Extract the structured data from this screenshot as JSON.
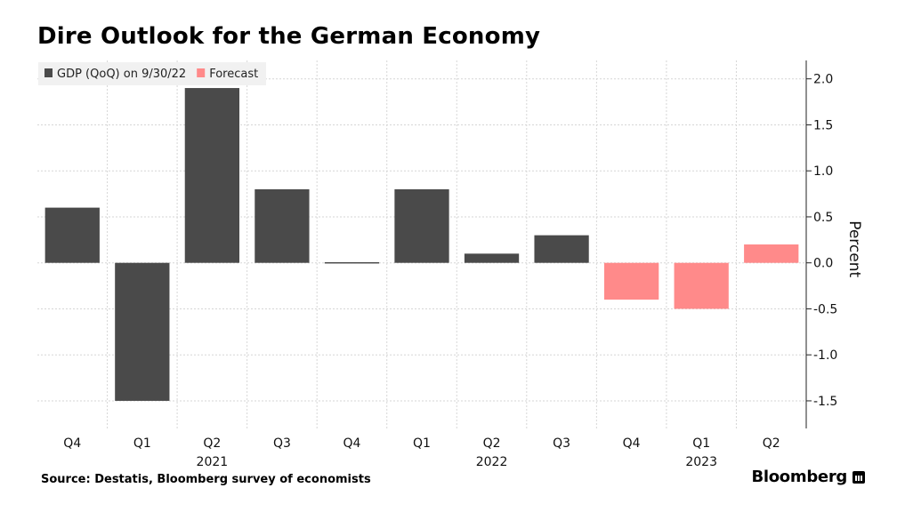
{
  "chart_data": {
    "type": "bar",
    "title": "Dire Outlook for the German Economy",
    "ylabel": "Percent",
    "ylim": [
      -1.8,
      2.2
    ],
    "yticks": [
      2.0,
      1.5,
      1.0,
      0.5,
      0.0,
      -0.5,
      -1.0,
      -1.5
    ],
    "ytick_labels": [
      "2.0",
      "1.5",
      "1.0",
      "0.5",
      "0.0",
      "-0.5",
      "-1.0",
      "-1.5"
    ],
    "categories": [
      "Q4",
      "Q1",
      "Q2",
      "Q3",
      "Q4",
      "Q1",
      "Q2",
      "Q3",
      "Q4",
      "Q1",
      "Q2"
    ],
    "year_labels": [
      {
        "category_index": 2,
        "label": "2021"
      },
      {
        "category_index": 6,
        "label": "2022"
      },
      {
        "category_index": 9,
        "label": "2023"
      }
    ],
    "series": [
      {
        "name": "GDP (QoQ) on 9/30/22",
        "color": "#4a4a4a",
        "values": [
          0.6,
          -1.5,
          1.9,
          0.8,
          0.0,
          0.8,
          0.1,
          0.3,
          null,
          null,
          null
        ]
      },
      {
        "name": "Forecast",
        "color": "#ff8a8a",
        "values": [
          null,
          null,
          null,
          null,
          null,
          null,
          null,
          null,
          -0.4,
          -0.5,
          0.2
        ]
      }
    ],
    "grid": true,
    "legend_position": "top-left",
    "y_axis_side": "right"
  },
  "source": "Source: Destatis, Bloomberg survey of economists",
  "brand": "Bloomberg"
}
